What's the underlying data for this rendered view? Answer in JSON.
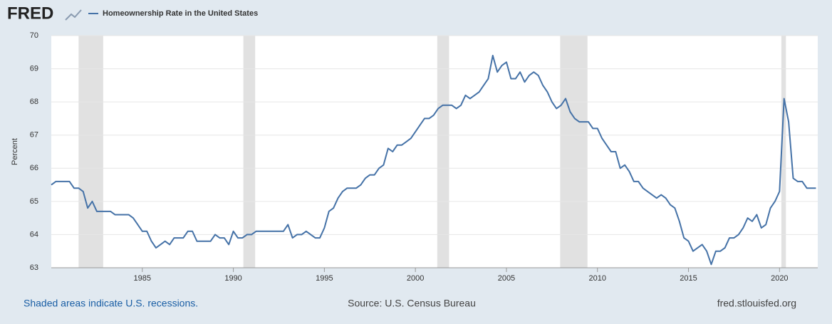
{
  "logo": "FRED",
  "footer": {
    "note": "Shaded areas indicate U.S. recessions.",
    "source": "Source: U.S. Census Bureau",
    "site": "fred.stlouisfed.org"
  },
  "chart_data": {
    "type": "line",
    "ylabel": "Percent",
    "xlim": [
      1980,
      2022.1
    ],
    "ylim": [
      63,
      70
    ],
    "xticks": [
      1985,
      1990,
      1995,
      2000,
      2005,
      2010,
      2015,
      2020
    ],
    "yticks": [
      63,
      64,
      65,
      66,
      67,
      68,
      69,
      70
    ],
    "grid": true,
    "recessions": [
      [
        1981.5,
        1982.85
      ],
      [
        1990.55,
        1991.2
      ],
      [
        2001.2,
        2001.85
      ],
      [
        2007.95,
        2009.45
      ],
      [
        2020.1,
        2020.35
      ]
    ],
    "recession_color": "#e1e1e1",
    "x": [
      1980,
      1980.25,
      1980.5,
      1980.75,
      1981,
      1981.25,
      1981.5,
      1981.75,
      1982,
      1982.25,
      1982.5,
      1982.75,
      1983,
      1983.25,
      1983.5,
      1983.75,
      1984,
      1984.25,
      1984.5,
      1984.75,
      1985,
      1985.25,
      1985.5,
      1985.75,
      1986,
      1986.25,
      1986.5,
      1986.75,
      1987,
      1987.25,
      1987.5,
      1987.75,
      1988,
      1988.25,
      1988.5,
      1988.75,
      1989,
      1989.25,
      1989.5,
      1989.75,
      1990,
      1990.25,
      1990.5,
      1990.75,
      1991,
      1991.25,
      1991.5,
      1991.75,
      1992,
      1992.25,
      1992.5,
      1992.75,
      1993,
      1993.25,
      1993.5,
      1993.75,
      1994,
      1994.25,
      1994.5,
      1994.75,
      1995,
      1995.25,
      1995.5,
      1995.75,
      1996,
      1996.25,
      1996.5,
      1996.75,
      1997,
      1997.25,
      1997.5,
      1997.75,
      1998,
      1998.25,
      1998.5,
      1998.75,
      1999,
      1999.25,
      1999.5,
      1999.75,
      2000,
      2000.25,
      2000.5,
      2000.75,
      2001,
      2001.25,
      2001.5,
      2001.75,
      2002,
      2002.25,
      2002.5,
      2002.75,
      2003,
      2003.25,
      2003.5,
      2003.75,
      2004,
      2004.25,
      2004.5,
      2004.75,
      2005,
      2005.25,
      2005.5,
      2005.75,
      2006,
      2006.25,
      2006.5,
      2006.75,
      2007,
      2007.25,
      2007.5,
      2007.75,
      2008,
      2008.25,
      2008.5,
      2008.75,
      2009,
      2009.25,
      2009.5,
      2009.75,
      2010,
      2010.25,
      2010.5,
      2010.75,
      2011,
      2011.25,
      2011.5,
      2011.75,
      2012,
      2012.25,
      2012.5,
      2012.75,
      2013,
      2013.25,
      2013.5,
      2013.75,
      2014,
      2014.25,
      2014.5,
      2014.75,
      2015,
      2015.25,
      2015.5,
      2015.75,
      2016,
      2016.25,
      2016.5,
      2016.75,
      2017,
      2017.25,
      2017.5,
      2017.75,
      2018,
      2018.25,
      2018.5,
      2018.75,
      2019,
      2019.25,
      2019.5,
      2019.75,
      2020,
      2020.25,
      2020.5,
      2020.75,
      2021,
      2021.25,
      2021.5,
      2021.75,
      2022
    ],
    "series": [
      {
        "name": "Homeownership Rate in the United States",
        "color": "#4572a7",
        "values": [
          65.5,
          65.6,
          65.6,
          65.6,
          65.6,
          65.4,
          65.4,
          65.3,
          64.8,
          65.0,
          64.7,
          64.7,
          64.7,
          64.7,
          64.6,
          64.6,
          64.6,
          64.6,
          64.5,
          64.3,
          64.1,
          64.1,
          63.8,
          63.6,
          63.7,
          63.8,
          63.7,
          63.9,
          63.9,
          63.9,
          64.1,
          64.1,
          63.8,
          63.8,
          63.8,
          63.8,
          64.0,
          63.9,
          63.9,
          63.7,
          64.1,
          63.9,
          63.9,
          64.0,
          64.0,
          64.1,
          64.1,
          64.1,
          64.1,
          64.1,
          64.1,
          64.1,
          64.3,
          63.9,
          64.0,
          64.0,
          64.1,
          64.0,
          63.9,
          63.9,
          64.2,
          64.7,
          64.8,
          65.1,
          65.3,
          65.4,
          65.4,
          65.4,
          65.5,
          65.7,
          65.8,
          65.8,
          66.0,
          66.1,
          66.6,
          66.5,
          66.7,
          66.7,
          66.8,
          66.9,
          67.1,
          67.3,
          67.5,
          67.5,
          67.6,
          67.8,
          67.9,
          67.9,
          67.9,
          67.8,
          67.9,
          68.2,
          68.1,
          68.2,
          68.3,
          68.5,
          68.7,
          69.4,
          68.9,
          69.1,
          69.2,
          68.7,
          68.7,
          68.9,
          68.6,
          68.8,
          68.9,
          68.8,
          68.5,
          68.3,
          68.0,
          67.8,
          67.9,
          68.1,
          67.7,
          67.5,
          67.4,
          67.4,
          67.4,
          67.2,
          67.2,
          66.9,
          66.7,
          66.5,
          66.5,
          66.0,
          66.1,
          65.9,
          65.6,
          65.6,
          65.4,
          65.3,
          65.2,
          65.1,
          65.2,
          65.1,
          64.9,
          64.8,
          64.4,
          63.9,
          63.8,
          63.5,
          63.6,
          63.7,
          63.5,
          63.1,
          63.5,
          63.5,
          63.6,
          63.9,
          63.9,
          64.0,
          64.2,
          64.5,
          64.4,
          64.6,
          64.2,
          64.3,
          64.8,
          65.0,
          65.3,
          68.1,
          67.4,
          65.7,
          65.6,
          65.6,
          65.4,
          65.4,
          65.4
        ]
      }
    ]
  }
}
